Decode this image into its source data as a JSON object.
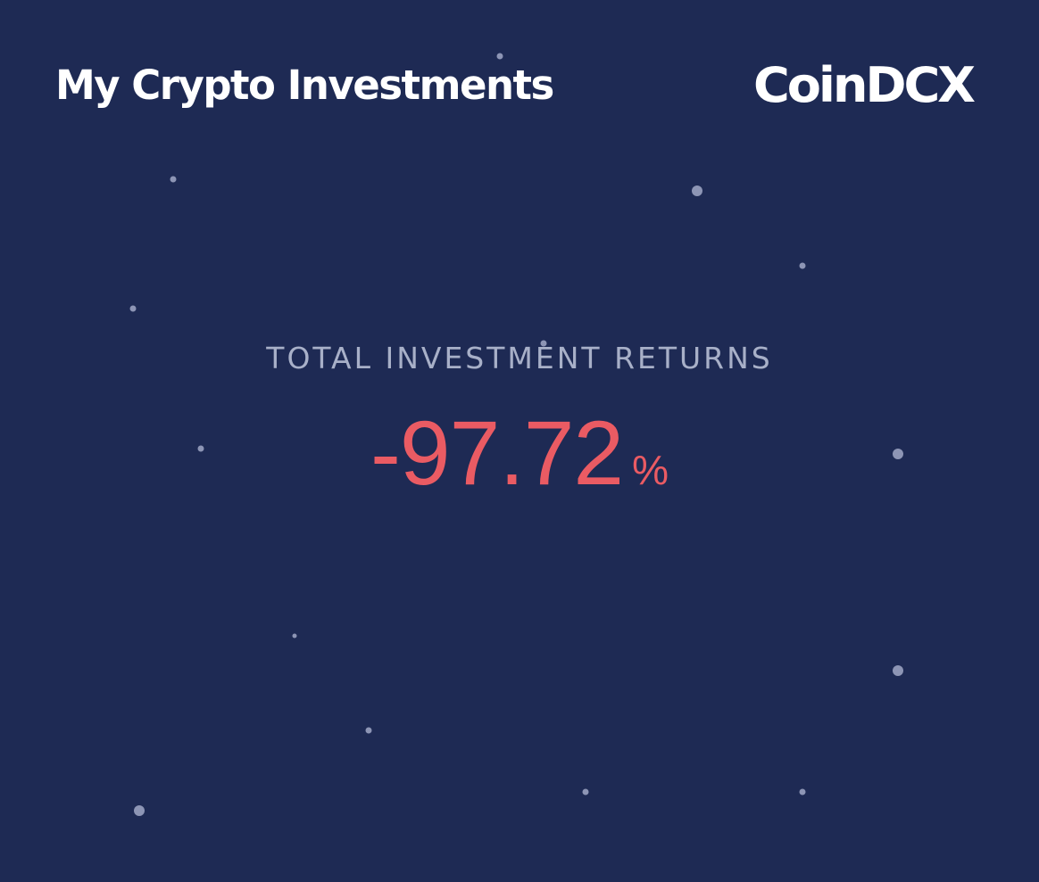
{
  "header": {
    "title": "My Crypto Investments",
    "brand": "CoinDCX"
  },
  "summary": {
    "label": "TOTAL INVESTMENT RETURNS",
    "value": "-97.72",
    "unit": "%"
  },
  "colors": {
    "background": "#1e2a54",
    "title": "#ffffff",
    "label": "#a8b0c8",
    "negative": "#ea5b63",
    "star": "#8d95b5"
  }
}
